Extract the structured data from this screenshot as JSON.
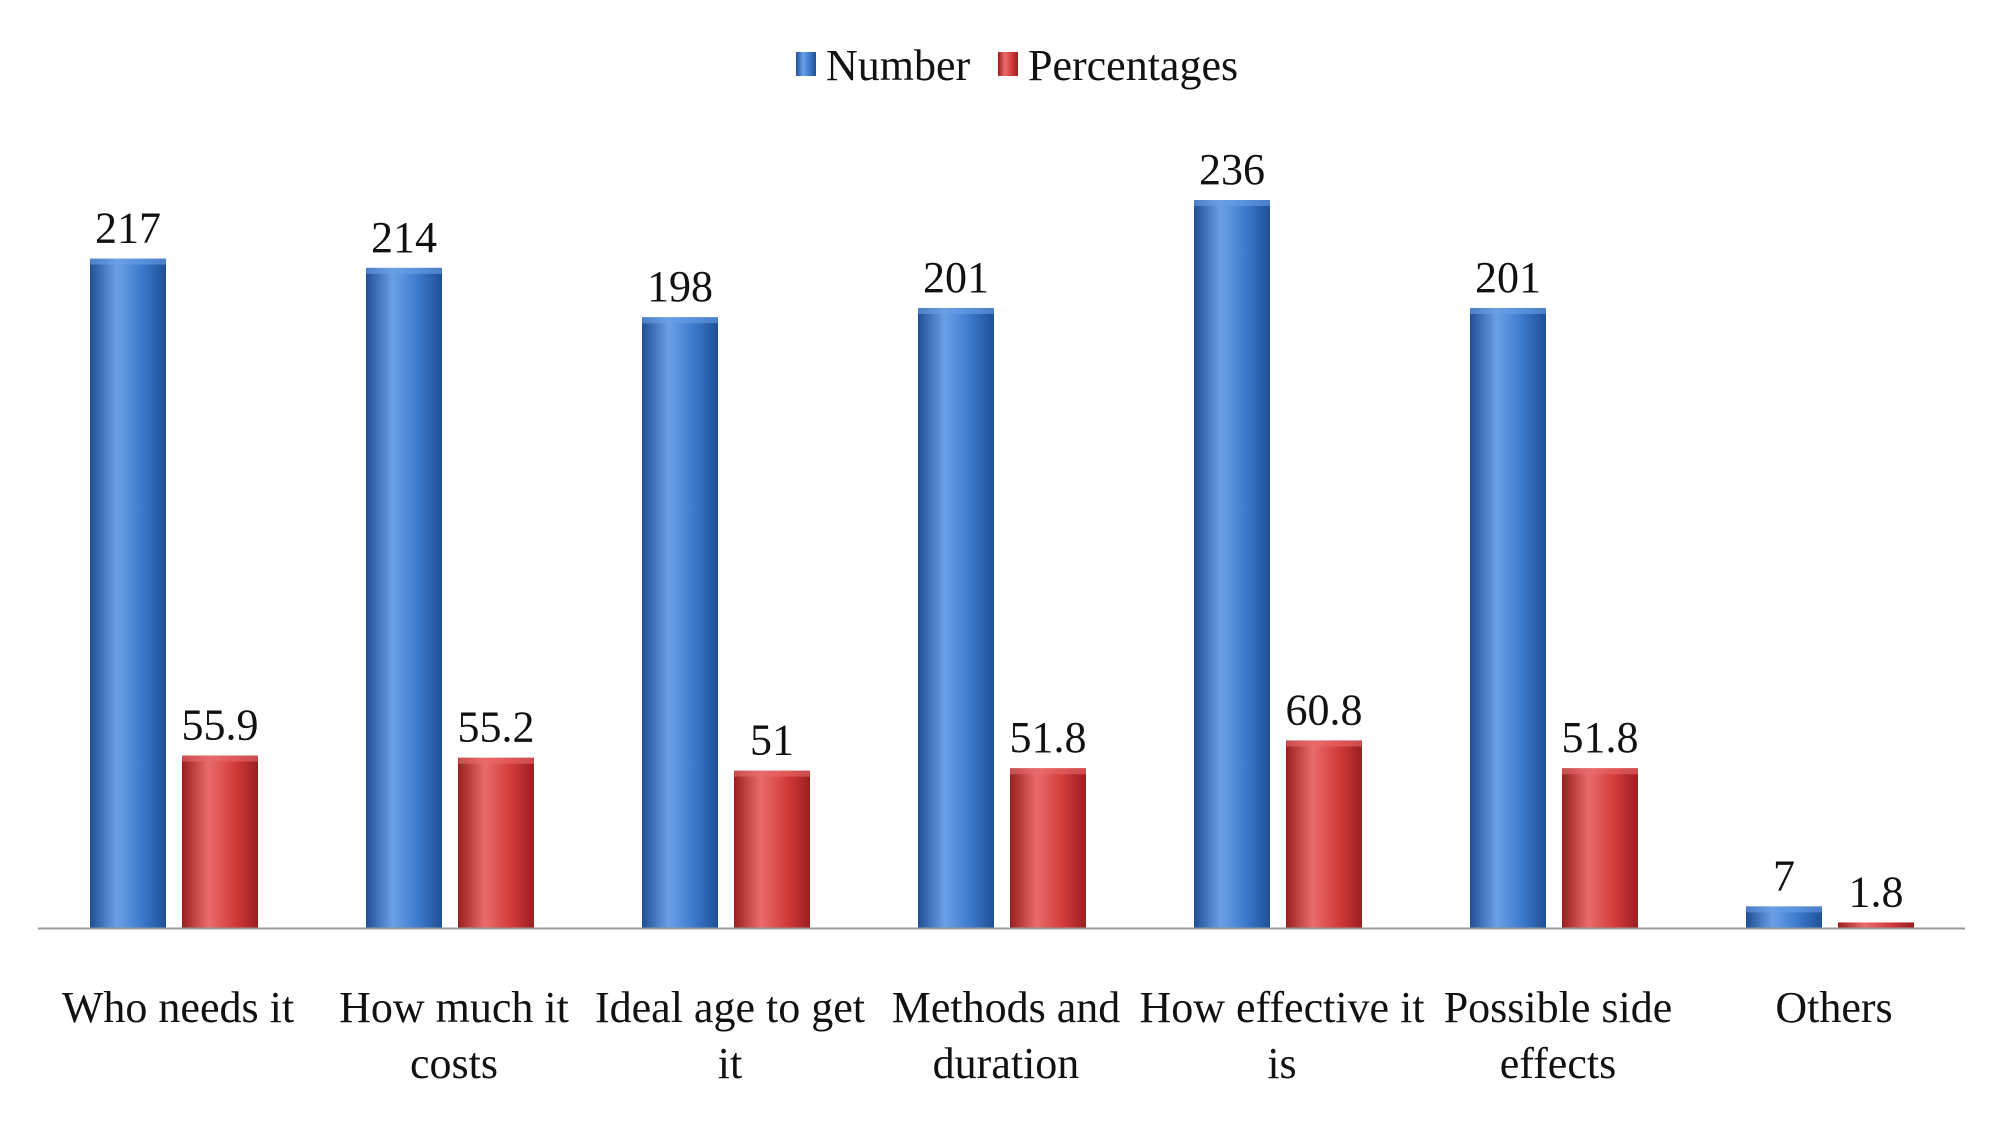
{
  "colors": {
    "number": "#3a78cc",
    "number_dark": "#1f4f95",
    "number_light": "#6aa0e6",
    "percentages": "#d23a3a",
    "percentages_dark": "#9a1f1f",
    "percentages_light": "#ea6b6b",
    "axis": "#999999"
  },
  "chart_data": {
    "type": "bar",
    "title": "",
    "xlabel": "",
    "ylabel": "",
    "ylim": [
      0,
      250
    ],
    "grid": false,
    "legend_position": "top-center",
    "categories": [
      [
        "Who needs it"
      ],
      [
        "How much it",
        "costs"
      ],
      [
        "Ideal age to get",
        "it"
      ],
      [
        "Methods and",
        "duration"
      ],
      [
        "How effective it",
        "is"
      ],
      [
        "Possible side",
        "effects"
      ],
      [
        "Others"
      ]
    ],
    "series": [
      {
        "name": "Number",
        "values": [
          217,
          214,
          198,
          201,
          236,
          201,
          7
        ],
        "labels": [
          "217",
          "214",
          "198",
          "201",
          "236",
          "201",
          "7"
        ]
      },
      {
        "name": "Percentages",
        "values": [
          55.9,
          55.2,
          51,
          51.8,
          60.8,
          51.8,
          1.8
        ],
        "labels": [
          "55.9",
          "55.2",
          "51",
          "51.8",
          "60.8",
          "51.8",
          "1.8"
        ]
      }
    ]
  }
}
